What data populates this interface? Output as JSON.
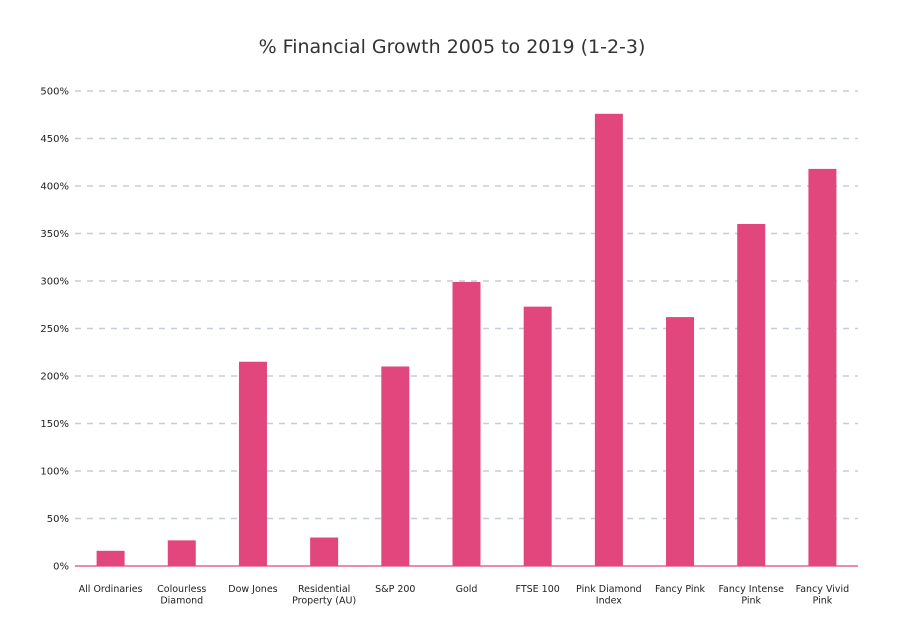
{
  "chart_data": {
    "type": "bar",
    "title": "% Financial Growth 2005 to 2019 (1-2-3)",
    "xlabel": "",
    "ylabel": "",
    "ylim": [
      0,
      500
    ],
    "yticks": [
      0,
      50,
      100,
      150,
      200,
      250,
      300,
      350,
      400,
      450,
      500
    ],
    "ytick_labels": [
      "0%",
      "50%",
      "100%",
      "150%",
      "200%",
      "250%",
      "300%",
      "350%",
      "400%",
      "450%",
      "500%"
    ],
    "grid": true,
    "bar_color": "#e1477c",
    "grid_color": "#c5cdd6",
    "categories": [
      [
        "All Ordinaries"
      ],
      [
        "Colourless",
        "Diamond"
      ],
      [
        "Dow Jones"
      ],
      [
        "Residential",
        "Property (AU)"
      ],
      [
        "S&P 200"
      ],
      [
        "Gold"
      ],
      [
        "FTSE 100"
      ],
      [
        "Pink Diamond",
        "Index"
      ],
      [
        "Fancy Pink"
      ],
      [
        "Fancy Intense",
        "Pink"
      ],
      [
        "Fancy Vivid",
        "Pink"
      ]
    ],
    "values": [
      16,
      27,
      215,
      30,
      210,
      299,
      273,
      476,
      262,
      360,
      418
    ]
  }
}
